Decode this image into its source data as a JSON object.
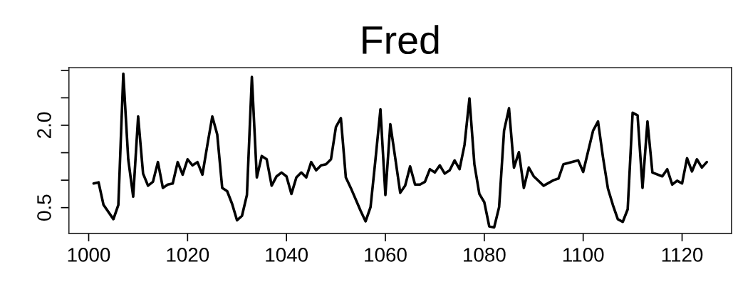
{
  "chart_data": {
    "type": "line",
    "title": "Fred",
    "x": [
      1001,
      1002,
      1003,
      1005,
      1006,
      1007,
      1008,
      1009,
      1010,
      1011,
      1012,
      1013,
      1014,
      1015,
      1016,
      1017,
      1018,
      1019,
      1020,
      1021,
      1022,
      1023,
      1024,
      1025,
      1026,
      1027,
      1028,
      1029,
      1030,
      1031,
      1032,
      1033,
      1034,
      1035,
      1036,
      1037,
      1038,
      1039,
      1040,
      1041,
      1042,
      1043,
      1044,
      1045,
      1046,
      1047,
      1048,
      1049,
      1050,
      1051,
      1052,
      1053,
      1055,
      1056,
      1057,
      1058,
      1059,
      1060,
      1061,
      1062,
      1063,
      1064,
      1065,
      1066,
      1067,
      1068,
      1069,
      1070,
      1071,
      1072,
      1073,
      1074,
      1075,
      1076,
      1077,
      1078,
      1079,
      1080,
      1081,
      1082,
      1083,
      1084,
      1085,
      1086,
      1087,
      1088,
      1089,
      1090,
      1092,
      1094,
      1095,
      1096,
      1099,
      1100,
      1102,
      1103,
      1104,
      1105,
      1106,
      1107,
      1108,
      1109,
      1110,
      1111,
      1112,
      1113,
      1114,
      1116,
      1117,
      1118,
      1119,
      1120,
      1121,
      1122,
      1123,
      1124,
      1125
    ],
    "series": [
      {
        "color": "#000000",
        "values": [
          0.94,
          0.96,
          0.55,
          0.29,
          0.55,
          2.94,
          1.38,
          0.7,
          2.16,
          1.12,
          0.9,
          0.97,
          1.33,
          0.86,
          0.92,
          0.94,
          1.33,
          1.1,
          1.38,
          1.27,
          1.33,
          1.1,
          1.64,
          2.16,
          1.83,
          0.86,
          0.8,
          0.57,
          0.27,
          0.35,
          0.73,
          2.88,
          1.05,
          1.44,
          1.38,
          0.9,
          1.07,
          1.14,
          1.07,
          0.75,
          1.05,
          1.14,
          1.05,
          1.33,
          1.18,
          1.27,
          1.29,
          1.38,
          1.97,
          2.13,
          1.05,
          0.86,
          0.44,
          0.25,
          0.51,
          1.38,
          2.29,
          0.73,
          2.02,
          1.4,
          0.77,
          0.9,
          1.25,
          0.92,
          0.92,
          0.97,
          1.2,
          1.14,
          1.27,
          1.12,
          1.18,
          1.36,
          1.2,
          1.64,
          2.49,
          1.29,
          0.75,
          0.6,
          0.16,
          0.14,
          0.51,
          1.9,
          2.31,
          1.23,
          1.51,
          0.86,
          1.23,
          1.07,
          0.9,
          1.0,
          1.03,
          1.29,
          1.36,
          1.15,
          1.9,
          2.07,
          1.42,
          0.85,
          0.55,
          0.29,
          0.24,
          0.47,
          2.23,
          2.18,
          0.86,
          2.07,
          1.14,
          1.07,
          1.2,
          0.92,
          0.99,
          0.94,
          1.4,
          1.16,
          1.38,
          1.23,
          1.33
        ]
      }
    ],
    "xlim": [
      996,
      1130
    ],
    "xticks": [
      1000,
      1020,
      1040,
      1060,
      1080,
      1100,
      1120
    ],
    "ylim": [
      0.03,
      3.05
    ],
    "yticks": [
      0.5,
      {
        "value": 1.0,
        "label": null
      },
      {
        "value": 1.5,
        "label": null
      },
      {
        "value": 2.0,
        "label": "2.0"
      },
      {
        "value": 2.5,
        "label": null
      },
      {
        "value": 3.0,
        "label": null
      }
    ],
    "grid": false,
    "legend": false,
    "marker": "none",
    "line_style": "solid"
  }
}
